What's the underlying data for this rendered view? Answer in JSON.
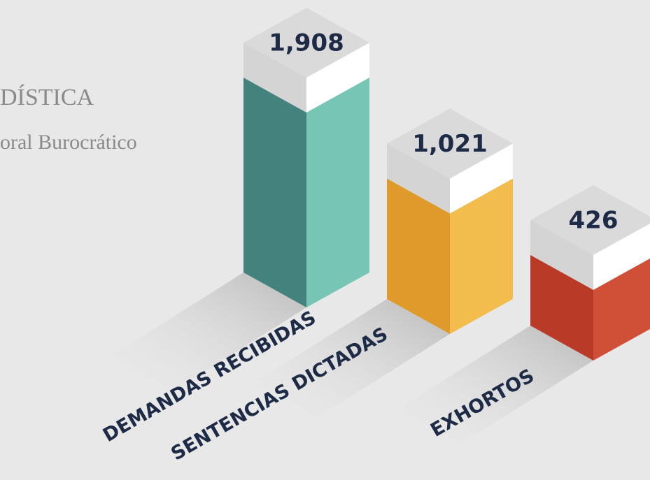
{
  "chart_data": {
    "type": "bar3d",
    "title": "DÍSTICA",
    "subtitle": "oral Burocrático",
    "categories": [
      "DEMANDAS RECIBIDAS",
      "SENTENCIAS DICTADAS",
      "EXHORTOS"
    ],
    "values": [
      1908,
      1021,
      426
    ],
    "value_labels": [
      "1,908",
      "1,021",
      "426"
    ],
    "colors": [
      [
        "#44827d",
        "#77c5b4"
      ],
      [
        "#df9a2b",
        "#f3bd4e"
      ],
      [
        "#b83a27",
        "#cf5037"
      ]
    ]
  }
}
